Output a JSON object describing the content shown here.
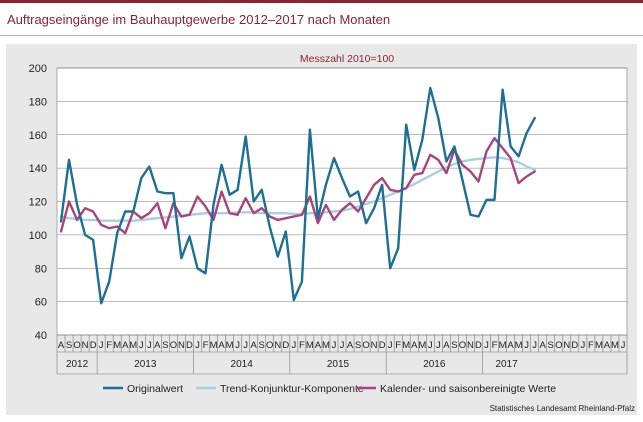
{
  "page": {
    "title": "Auftragseingänge im Bauhauptgewerbe 2012–2017 nach Monaten",
    "source": "Statistisches Landesamt Rheinland-Pfalz"
  },
  "chart_data": {
    "type": "line",
    "subtitle": "Messzahl 2010=100",
    "ylim": [
      40,
      200
    ],
    "yticks": [
      40,
      60,
      80,
      100,
      120,
      140,
      160,
      180,
      200
    ],
    "grid": true,
    "legend_position": "bottom",
    "month_labels": [
      "A",
      "S",
      "O",
      "N",
      "D",
      "J",
      "F",
      "M",
      "A",
      "M",
      "J",
      "J",
      "A",
      "S",
      "O",
      "N",
      "D",
      "J",
      "F",
      "M",
      "A",
      "M",
      "J",
      "J",
      "A",
      "S",
      "O",
      "N",
      "D",
      "J",
      "F",
      "M",
      "A",
      "M",
      "J",
      "J",
      "A",
      "S",
      "O",
      "N",
      "D",
      "J",
      "F",
      "M",
      "A",
      "M",
      "J",
      "J",
      "A",
      "S",
      "O",
      "N",
      "D",
      "J",
      "F",
      "M",
      "A",
      "M",
      "J",
      "J",
      "A",
      "S",
      "O",
      "N",
      "D",
      "J",
      "F",
      "M",
      "A",
      "M",
      "J"
    ],
    "years": [
      {
        "label": "2012",
        "start": 0,
        "end": 5
      },
      {
        "label": "2013",
        "start": 5,
        "end": 17
      },
      {
        "label": "2014",
        "start": 17,
        "end": 29
      },
      {
        "label": "2015",
        "start": 29,
        "end": 41
      },
      {
        "label": "2016",
        "start": 41,
        "end": 53
      },
      {
        "label": "2017",
        "start": 53,
        "end": 59
      }
    ],
    "series": [
      {
        "name": "Originalwert",
        "color": "#1d6f93",
        "values": [
          108,
          145,
          118,
          100,
          97,
          59,
          72,
          101,
          114,
          114,
          134,
          141,
          126,
          125,
          125,
          86,
          99,
          80,
          77,
          118,
          142,
          124,
          127,
          159,
          120,
          127,
          105,
          87,
          102,
          61,
          72,
          163,
          110,
          130,
          146,
          134,
          123,
          126,
          107,
          116,
          130,
          80,
          92,
          166,
          139,
          157,
          188,
          170,
          144,
          153,
          133,
          112,
          111,
          121,
          121,
          187,
          153,
          147,
          161,
          170
        ],
        "stroke_width": 2.4
      },
      {
        "name": "Trend-Konjunktur-Komponente",
        "color": "#a9cfe2",
        "values": [
          111,
          110,
          109.5,
          109,
          109,
          108.5,
          108.5,
          108.5,
          108.5,
          108.5,
          109,
          109.5,
          110,
          110.5,
          111,
          111.5,
          112,
          112.5,
          113,
          113,
          113,
          113,
          113.5,
          113.5,
          113.5,
          113,
          113,
          113,
          113,
          112.5,
          112.5,
          113,
          113,
          113.5,
          114,
          114.5,
          115.5,
          117,
          118.5,
          120,
          122,
          124,
          126,
          128,
          130.5,
          133,
          135.5,
          138,
          140.5,
          142.5,
          144,
          145,
          145.5,
          146,
          146.5,
          146,
          145,
          143.5,
          141,
          139
        ],
        "stroke_width": 2.4
      },
      {
        "name": "Kalender- und saisonbereinigte Werte",
        "color": "#a8457a",
        "values": [
          102,
          120,
          109,
          116,
          114,
          106,
          104,
          105,
          101,
          114,
          110,
          113,
          119,
          104,
          119,
          111,
          112,
          123,
          117,
          109,
          126,
          113,
          112,
          122,
          113,
          116,
          111,
          109,
          110,
          111,
          112,
          123,
          107,
          118,
          109,
          115,
          119,
          114,
          122,
          130,
          134,
          127,
          126,
          128,
          136,
          137,
          148,
          145,
          137,
          151,
          142,
          138,
          132,
          150,
          158,
          152,
          146,
          131,
          135,
          138
        ],
        "stroke_width": 2.4
      }
    ]
  }
}
